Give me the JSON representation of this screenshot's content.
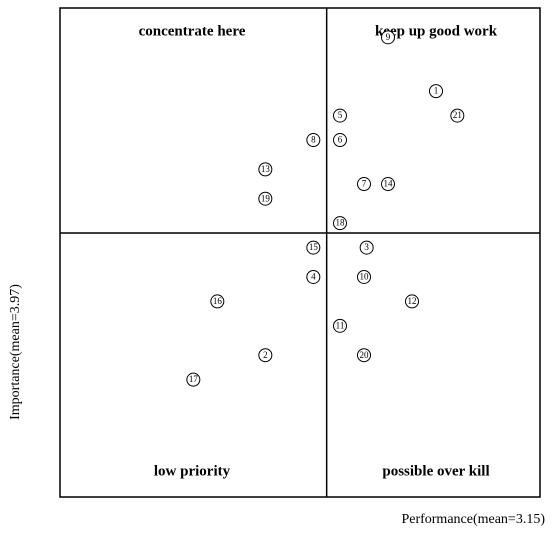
{
  "chart_data": {
    "type": "scatter",
    "x_label": "Performance(mean=3.15)",
    "y_label": "Importance(mean=3.97)",
    "annotations": [
      "concentrate here",
      "keep up good work",
      "low priority",
      "possible over kill"
    ],
    "labels": [
      "1",
      "2",
      "3",
      "4",
      "5",
      "6",
      "7",
      "8",
      "9",
      "10",
      "11",
      "12",
      "13",
      "14",
      "15",
      "16",
      "17",
      "18",
      "19",
      "20",
      "21"
    ],
    "x": [
      3.56,
      2.92,
      3.3,
      3.1,
      3.2,
      3.2,
      3.29,
      3.1,
      3.38,
      3.29,
      3.2,
      3.47,
      2.92,
      3.38,
      3.1,
      2.74,
      2.65,
      3.2,
      2.92,
      3.29,
      3.64
    ],
    "y": [
      4.26,
      3.72,
      3.94,
      3.88,
      4.21,
      4.16,
      4.07,
      4.16,
      4.37,
      3.88,
      3.78,
      3.83,
      4.1,
      4.07,
      3.94,
      3.83,
      3.67,
      3.99,
      4.04,
      3.72,
      4.21
    ],
    "x_mean": 3.15,
    "y_mean": 3.97,
    "xlim": [
      2.15,
      3.95
    ],
    "ylim": [
      3.43,
      4.43
    ],
    "color": "#000000"
  }
}
